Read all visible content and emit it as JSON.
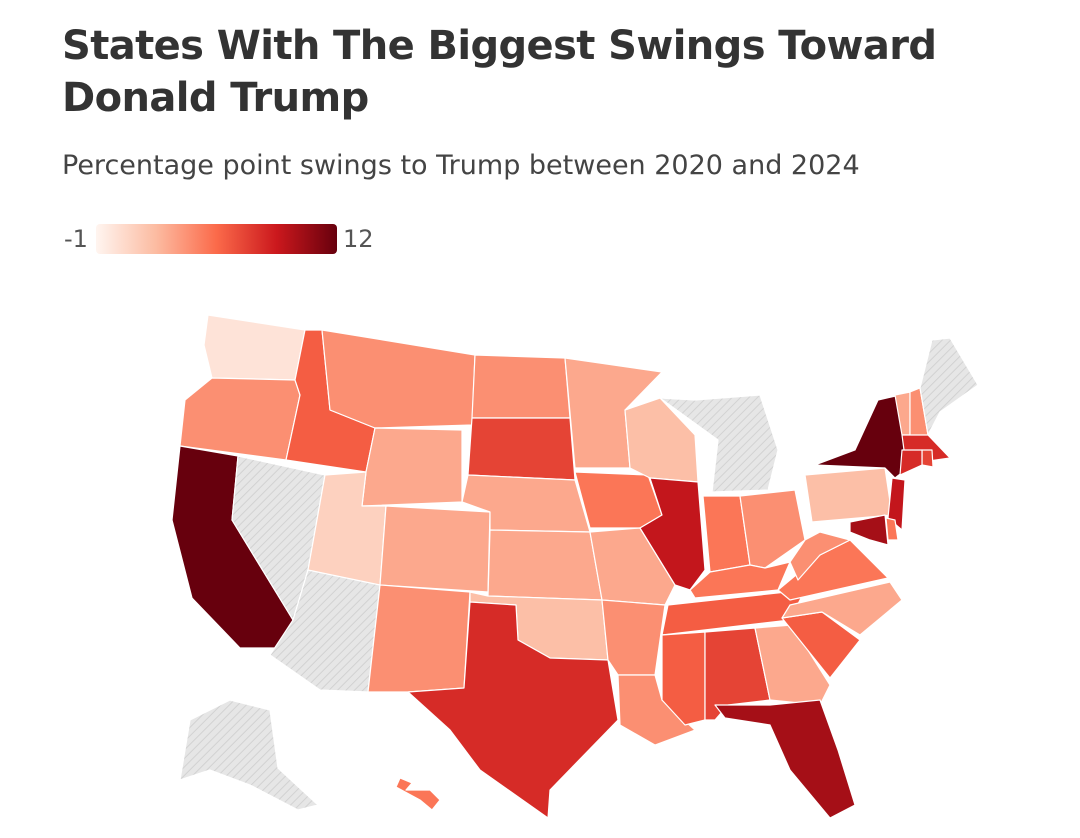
{
  "title": "States With The Biggest Swings Toward Donald Trump",
  "subtitle": "Percentage point swings to Trump between 2020 and 2024",
  "legend": {
    "min_label": "-1",
    "max_label": "12",
    "min": -1,
    "max": 12,
    "colors": [
      "#fff5f0",
      "#fcbba1",
      "#fb6a4a",
      "#cb181d",
      "#67000d"
    ]
  },
  "no_data_color": "#e3e3e3",
  "states": [
    {
      "id": "WA",
      "swing": 0
    },
    {
      "id": "OR",
      "swing": 4
    },
    {
      "id": "CA",
      "swing": 12
    },
    {
      "id": "NV",
      "swing": null
    },
    {
      "id": "ID",
      "swing": 6
    },
    {
      "id": "MT",
      "swing": 4
    },
    {
      "id": "WY",
      "swing": 3
    },
    {
      "id": "UT",
      "swing": 1
    },
    {
      "id": "AZ",
      "swing": null
    },
    {
      "id": "CO",
      "swing": 3
    },
    {
      "id": "NM",
      "swing": 4
    },
    {
      "id": "ND",
      "swing": 4
    },
    {
      "id": "SD",
      "swing": 7
    },
    {
      "id": "NE",
      "swing": 3
    },
    {
      "id": "KS",
      "swing": 3
    },
    {
      "id": "OK",
      "swing": 2
    },
    {
      "id": "TX",
      "swing": 8
    },
    {
      "id": "MN",
      "swing": 3
    },
    {
      "id": "IA",
      "swing": 5
    },
    {
      "id": "MO",
      "swing": 3
    },
    {
      "id": "AR",
      "swing": 4
    },
    {
      "id": "LA",
      "swing": 4
    },
    {
      "id": "WI",
      "swing": 2
    },
    {
      "id": "IL",
      "swing": 9
    },
    {
      "id": "MI",
      "swing": null
    },
    {
      "id": "IN",
      "swing": 5
    },
    {
      "id": "OH",
      "swing": 4
    },
    {
      "id": "KY",
      "swing": 5
    },
    {
      "id": "TN",
      "swing": 6
    },
    {
      "id": "MS",
      "swing": 6
    },
    {
      "id": "AL",
      "swing": 7
    },
    {
      "id": "GA",
      "swing": 3
    },
    {
      "id": "FL",
      "swing": 10
    },
    {
      "id": "SC",
      "swing": 6
    },
    {
      "id": "NC",
      "swing": 3
    },
    {
      "id": "VA",
      "swing": 5
    },
    {
      "id": "WV",
      "swing": 4
    },
    {
      "id": "PA",
      "swing": 2
    },
    {
      "id": "NY",
      "swing": 12
    },
    {
      "id": "VT",
      "swing": 3
    },
    {
      "id": "NH",
      "swing": 4
    },
    {
      "id": "ME",
      "swing": null
    },
    {
      "id": "MA",
      "swing": 8
    },
    {
      "id": "CT",
      "swing": 8
    },
    {
      "id": "RI",
      "swing": 7
    },
    {
      "id": "NJ",
      "swing": 9
    },
    {
      "id": "DE",
      "swing": 5
    },
    {
      "id": "MD",
      "swing": 10
    },
    {
      "id": "AK",
      "swing": null
    },
    {
      "id": "HI",
      "swing": 5
    }
  ]
}
